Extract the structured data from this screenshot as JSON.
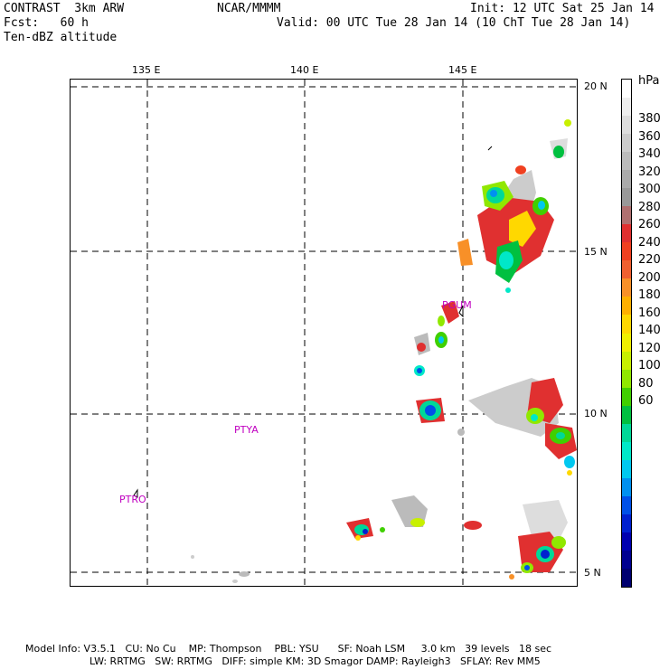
{
  "header": {
    "product": "CONTRAST  3km ARW",
    "center": "NCAR/MMMM",
    "init": "Init: 12 UTC Sat 25 Jan 14",
    "fcst": "Fcst:   60 h",
    "valid": "Valid: 00 UTC Tue 28 Jan 14 (10 ChT Tue 28 Jan 14)",
    "field": "Ten-dBZ altitude"
  },
  "map": {
    "lon_labels": [
      "135 E",
      "140 E",
      "145 E"
    ],
    "lat_labels": [
      "20 N",
      "15 N",
      "10 N",
      "5 N"
    ],
    "stations": [
      "PGUM",
      "PTYA",
      "PTRO"
    ]
  },
  "colorbar": {
    "unit": "hPa",
    "labels": [
      "380",
      "360",
      "340",
      "320",
      "300",
      "280",
      "260",
      "240",
      "220",
      "200",
      "180",
      "160",
      "140",
      "120",
      "100",
      "80",
      "60"
    ],
    "colors": [
      "#ffffff",
      "#eeeeee",
      "#dddddd",
      "#cccccc",
      "#bbbbbb",
      "#aaaaaa",
      "#999999",
      "#b07070",
      "#e03030",
      "#f04020",
      "#f06030",
      "#f89028",
      "#ffb000",
      "#ffd800",
      "#f0f000",
      "#c8f000",
      "#90e800",
      "#40d000",
      "#00c040",
      "#00d898",
      "#00e8c8",
      "#00c8f0",
      "#0090f0",
      "#0050e8",
      "#0020d0",
      "#0000b0",
      "#000090",
      "#000070"
    ]
  },
  "footer": {
    "line1": "Model Info: V3.5.1   CU: No Cu    MP: Thompson    PBL: YSU      SF: Noah LSM     3.0 km   39 levels   18 sec",
    "line2": "LW: RRTMG   SW: RRTMG   DIFF: simple KM: 3D Smagor DAMP: Rayleigh3   SFLAY: Rev MM5"
  }
}
